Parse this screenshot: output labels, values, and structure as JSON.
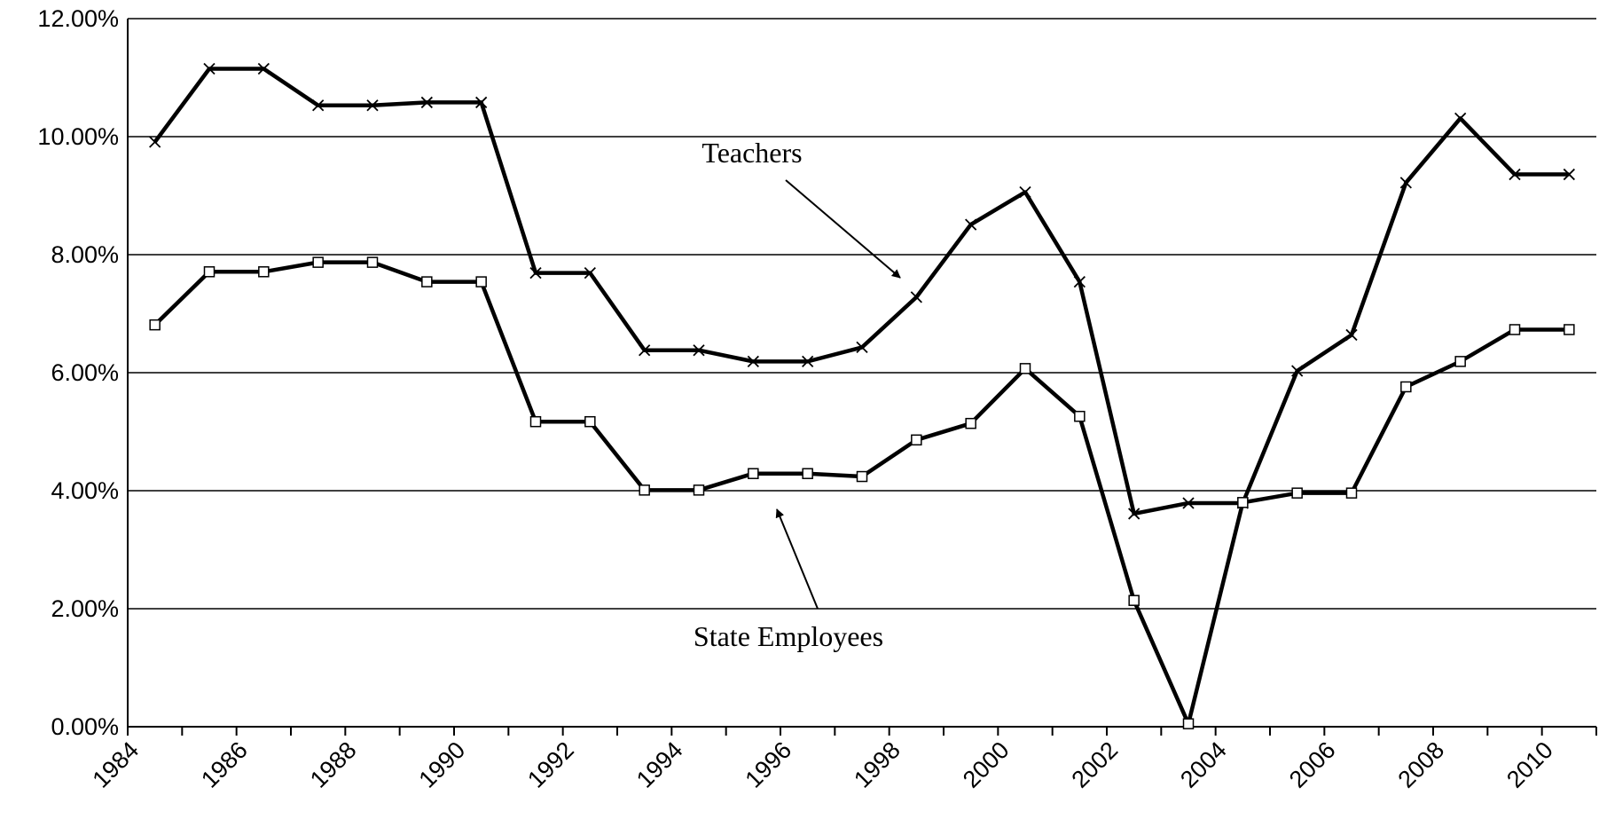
{
  "chart_data": {
    "type": "line",
    "x": [
      1984.5,
      1985.5,
      1986.5,
      1987.5,
      1988.5,
      1989.5,
      1990.5,
      1991.5,
      1992.5,
      1993.5,
      1994.5,
      1995.5,
      1996.5,
      1997.5,
      1998.5,
      1999.5,
      2000.5,
      2001.5,
      2002.5,
      2003.5,
      2004.5,
      2005.5,
      2006.5,
      2007.5,
      2008.5,
      2009.5,
      2010.5
    ],
    "series": [
      {
        "name": "Teachers",
        "color": "#000000",
        "marker": "x",
        "values": [
          9.91,
          11.15,
          11.15,
          10.53,
          10.53,
          10.58,
          10.58,
          7.69,
          7.69,
          6.38,
          6.38,
          6.19,
          6.19,
          6.43,
          7.28,
          8.51,
          9.06,
          7.54,
          3.61,
          3.79,
          3.79,
          6.03,
          6.64,
          9.22,
          10.31,
          9.36,
          9.36
        ]
      },
      {
        "name": "State Employees",
        "color": "#000000",
        "marker": "square",
        "values": [
          6.81,
          7.71,
          7.71,
          7.87,
          7.87,
          7.54,
          7.54,
          5.17,
          5.17,
          4.01,
          4.01,
          4.29,
          4.29,
          4.24,
          4.86,
          5.14,
          6.07,
          5.26,
          2.14,
          0.05,
          3.8,
          3.96,
          3.96,
          5.76,
          6.19,
          6.73,
          6.73
        ]
      }
    ],
    "xlim": [
      1984,
      2011
    ],
    "xticks": [
      1984,
      1986,
      1988,
      1990,
      1992,
      1994,
      1996,
      1998,
      2000,
      2002,
      2004,
      2006,
      2008,
      2010
    ],
    "ylim": [
      0,
      12
    ],
    "yticks": [
      {
        "value": 0,
        "label": "0.00%"
      },
      {
        "value": 2,
        "label": "2.00%"
      },
      {
        "value": 4,
        "label": "4.00%"
      },
      {
        "value": 6,
        "label": "6.00%"
      },
      {
        "value": 8,
        "label": "8.00%"
      },
      {
        "value": 10,
        "label": "10.00%"
      },
      {
        "value": 12,
        "label": "12.00%"
      }
    ],
    "grid": true,
    "annotations": [
      "Teachers",
      "State Employees"
    ]
  }
}
